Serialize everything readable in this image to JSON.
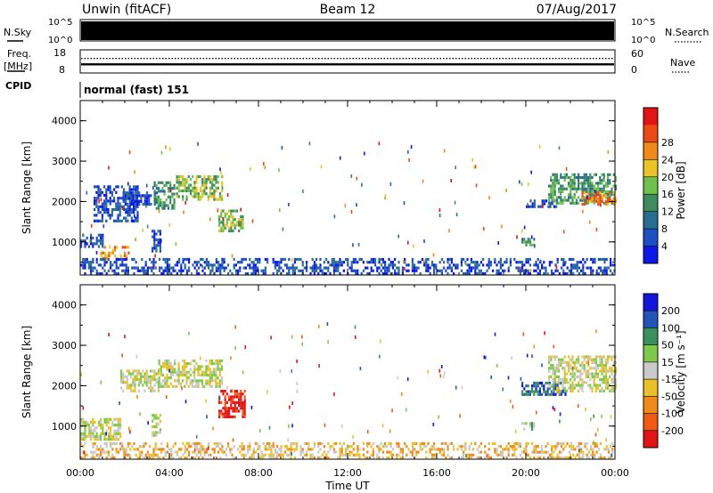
{
  "header": {
    "station": "Unwin (fitACF)",
    "beam": "Beam 12",
    "date": "07/Aug/2017"
  },
  "nsky_panel": {
    "left_label": "N.Sky",
    "right_label": "N.Search",
    "left_ticks": [
      "10^5",
      "10^0"
    ],
    "right_ticks": [
      "10^5",
      "10^0"
    ]
  },
  "freq_panel": {
    "left_label_line1": "Freq.",
    "left_label_line2": "[MHz]",
    "right_label": "Nave",
    "left_ticks": [
      "18",
      "8"
    ],
    "right_ticks": [
      "60",
      "0"
    ],
    "freq_level_mhz": 11.5,
    "nave_level": 39
  },
  "cpid": {
    "label": "CPID",
    "value": "normal (fast) 151"
  },
  "colors": {
    "power": [
      "#0b18e6",
      "#1c4fc2",
      "#2a6e8f",
      "#3e8c5e",
      "#6fc14b",
      "#e8c428",
      "#f08a1a",
      "#ec4a14",
      "#e01414"
    ],
    "velocity": [
      "#e01414",
      "#ef5a14",
      "#f08a1a",
      "#e9c02a",
      "#c9c9c9",
      "#7ec84c",
      "#3b8f5b",
      "#2454b8",
      "#1316d9"
    ]
  },
  "chart_data": [
    {
      "type": "heatmap",
      "ylabel": "Slant Range [km]",
      "yticks": [
        "1000",
        "2000",
        "3000",
        "4000"
      ],
      "ylim": [
        180,
        4500
      ],
      "xlim": [
        0,
        24
      ],
      "colorbar_label": "Power [dB]",
      "colorbar_ticks": [
        "4",
        "8",
        "12",
        "16",
        "20",
        "24",
        "28"
      ],
      "regions": [
        {
          "t0": 0.0,
          "t1": 1.0,
          "r0": 900,
          "r1": 1200,
          "level": 1
        },
        {
          "t0": 0.9,
          "t1": 2.2,
          "r0": 600,
          "r1": 900,
          "level": 6
        },
        {
          "t0": 0.6,
          "t1": 2.6,
          "r0": 1500,
          "r1": 2400,
          "level": 1
        },
        {
          "t0": 1.9,
          "t1": 3.4,
          "r0": 1900,
          "r1": 2250,
          "level": 1
        },
        {
          "t0": 3.3,
          "t1": 4.2,
          "r0": 1850,
          "r1": 2500,
          "level": 3
        },
        {
          "t0": 3.2,
          "t1": 3.6,
          "r0": 800,
          "r1": 1300,
          "level": 1
        },
        {
          "t0": 4.3,
          "t1": 6.4,
          "r0": 2050,
          "r1": 2650,
          "level": 4
        },
        {
          "t0": 6.2,
          "t1": 7.3,
          "r0": 1250,
          "r1": 1800,
          "level": 4
        },
        {
          "t0": 20.0,
          "t1": 21.4,
          "r0": 1850,
          "r1": 2050,
          "level": 1
        },
        {
          "t0": 19.8,
          "t1": 20.4,
          "r0": 950,
          "r1": 1100,
          "level": 3
        },
        {
          "t0": 21.0,
          "t1": 24.0,
          "r0": 1950,
          "r1": 2700,
          "level": 3
        },
        {
          "t0": 22.5,
          "t1": 24.0,
          "r0": 1950,
          "r1": 2250,
          "level": 6
        },
        {
          "t0": 0.0,
          "t1": 24.0,
          "r0": 180,
          "r1": 600,
          "level": 1
        }
      ]
    },
    {
      "type": "heatmap",
      "ylabel": "Slant Range [km]",
      "yticks": [
        "1000",
        "2000",
        "3000",
        "4000"
      ],
      "ylim": [
        180,
        4500
      ],
      "xlim": [
        0,
        24
      ],
      "xlabel": "Time UT",
      "xticks": [
        "00:00",
        "04:00",
        "08:00",
        "12:00",
        "16:00",
        "20:00",
        "00:00"
      ],
      "colorbar_label": "Velocity [m s⁻¹]",
      "colorbar_ticks": [
        "-200",
        "-100",
        "-50",
        "-15",
        "15",
        "50",
        "100",
        "200"
      ],
      "regions": [
        {
          "t0": 0.0,
          "t1": 1.8,
          "r0": 700,
          "r1": 1200,
          "level": 4
        },
        {
          "t0": 1.8,
          "t1": 3.5,
          "r0": 1850,
          "r1": 2400,
          "level": 4
        },
        {
          "t0": 3.5,
          "t1": 6.4,
          "r0": 1950,
          "r1": 2650,
          "level": 4
        },
        {
          "t0": 3.2,
          "t1": 3.6,
          "r0": 800,
          "r1": 1300,
          "level": 4
        },
        {
          "t0": 6.2,
          "t1": 7.4,
          "r0": 1200,
          "r1": 1900,
          "level": 0
        },
        {
          "t0": 19.8,
          "t1": 21.8,
          "r0": 1800,
          "r1": 2100,
          "level": 7
        },
        {
          "t0": 19.8,
          "t1": 20.4,
          "r0": 950,
          "r1": 1100,
          "level": 5
        },
        {
          "t0": 21.0,
          "t1": 24.0,
          "r0": 1850,
          "r1": 2750,
          "level": 4
        },
        {
          "t0": 0.0,
          "t1": 24.0,
          "r0": 180,
          "r1": 600,
          "level": 3
        }
      ]
    }
  ]
}
